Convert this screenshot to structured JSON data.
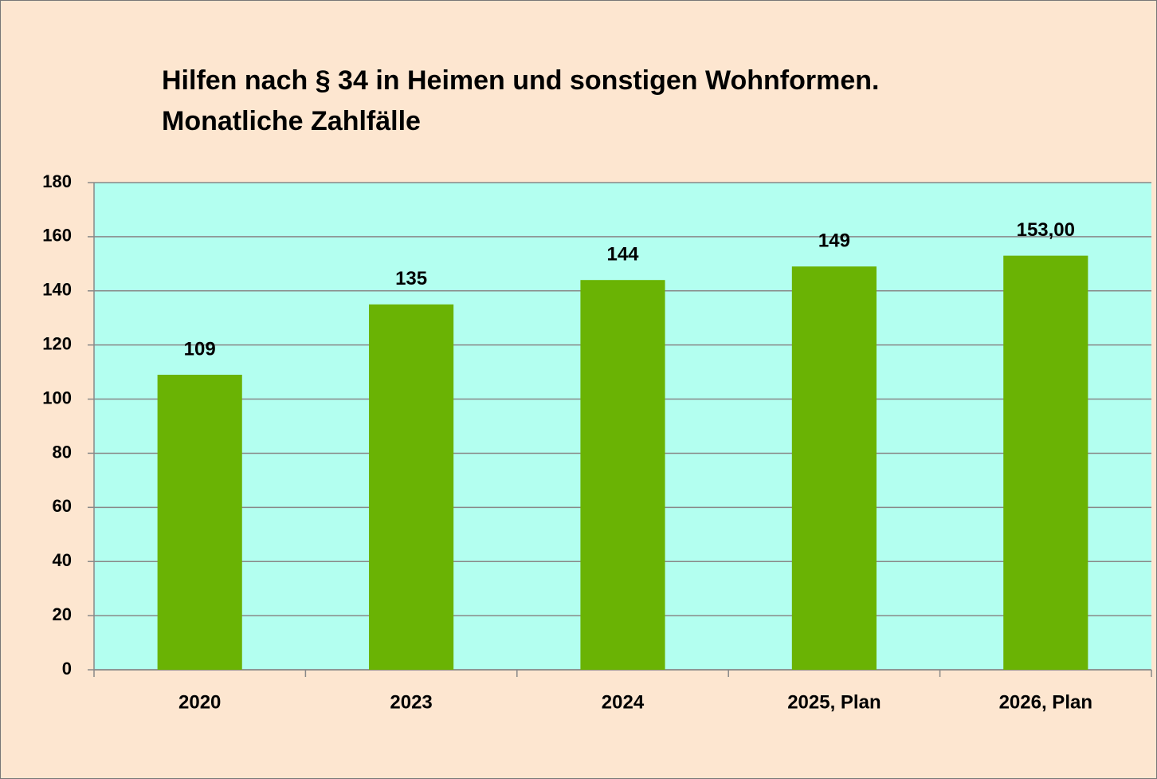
{
  "chart_data": {
    "type": "bar",
    "title": [
      "Hilfen nach § 34 in Heimen und sonstigen Wohnformen.",
      "Monatliche Zahlfälle"
    ],
    "categories": [
      "2020",
      "2023",
      "2024",
      "2025, Plan",
      "2026, Plan"
    ],
    "values": [
      109,
      135,
      144,
      149,
      153
    ],
    "value_labels": [
      "109",
      "135",
      "144",
      "149",
      "153,00"
    ],
    "color": "#6ab304",
    "ylim": [
      0,
      180
    ],
    "yticks": [
      0,
      20,
      40,
      60,
      80,
      100,
      120,
      140,
      160,
      180
    ],
    "grid": true
  }
}
